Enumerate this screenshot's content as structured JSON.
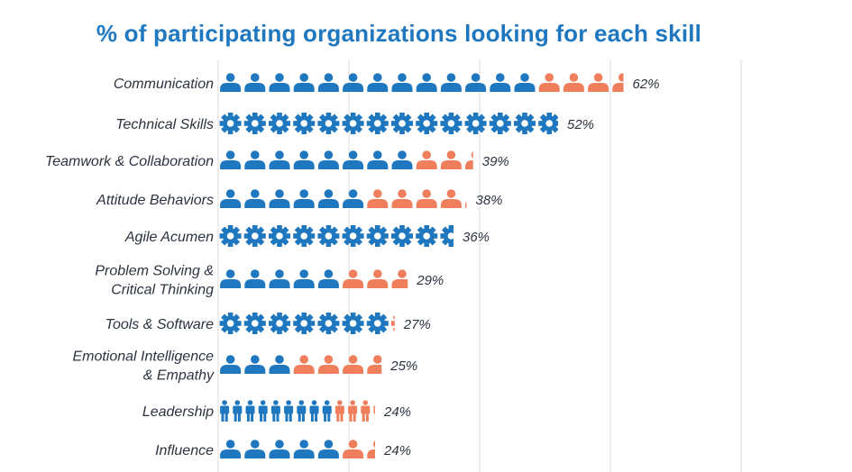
{
  "chart_data": {
    "type": "bar",
    "title": "% of participating organizations looking for each skill",
    "xlabel": "",
    "ylabel": "",
    "xlim": [
      0,
      100
    ],
    "grid": true,
    "categories": [
      "Communication",
      "Technical Skills",
      "Teamwork & Collaboration",
      "Attitude Behaviors",
      "Agile Acumen",
      "Problem Solving & Critical Thinking",
      "Tools & Software",
      "Emotional Intelligence & Empathy",
      "Leadership",
      "Influence"
    ],
    "category_lines": [
      [
        "Communication"
      ],
      [
        "Technical Skills"
      ],
      [
        "Teamwork & Collaboration"
      ],
      [
        "Attitude Behaviors"
      ],
      [
        "Agile Acumen"
      ],
      [
        "Problem Solving &",
        "Critical Thinking"
      ],
      [
        "Tools & Software"
      ],
      [
        "Emotional Intelligence",
        "& Empathy"
      ],
      [
        "Leadership"
      ],
      [
        "Influence"
      ]
    ],
    "values": [
      62,
      52,
      39,
      38,
      36,
      29,
      27,
      25,
      24,
      24
    ],
    "value_labels": [
      "62%",
      "52%",
      "39%",
      "38%",
      "36%",
      "29%",
      "27%",
      "25%",
      "24%",
      "24%"
    ],
    "icon_types": [
      "person",
      "gear",
      "person",
      "person",
      "gear",
      "person",
      "gear",
      "person",
      "standing-person",
      "person"
    ],
    "blue_share": [
      50,
      52,
      30,
      22,
      36,
      20,
      27,
      10,
      18,
      20
    ],
    "colors": {
      "blue": "#1f78bf",
      "orange": "#ef7f5c",
      "grid": "#dcdcdc",
      "text": "#2b3340"
    }
  }
}
